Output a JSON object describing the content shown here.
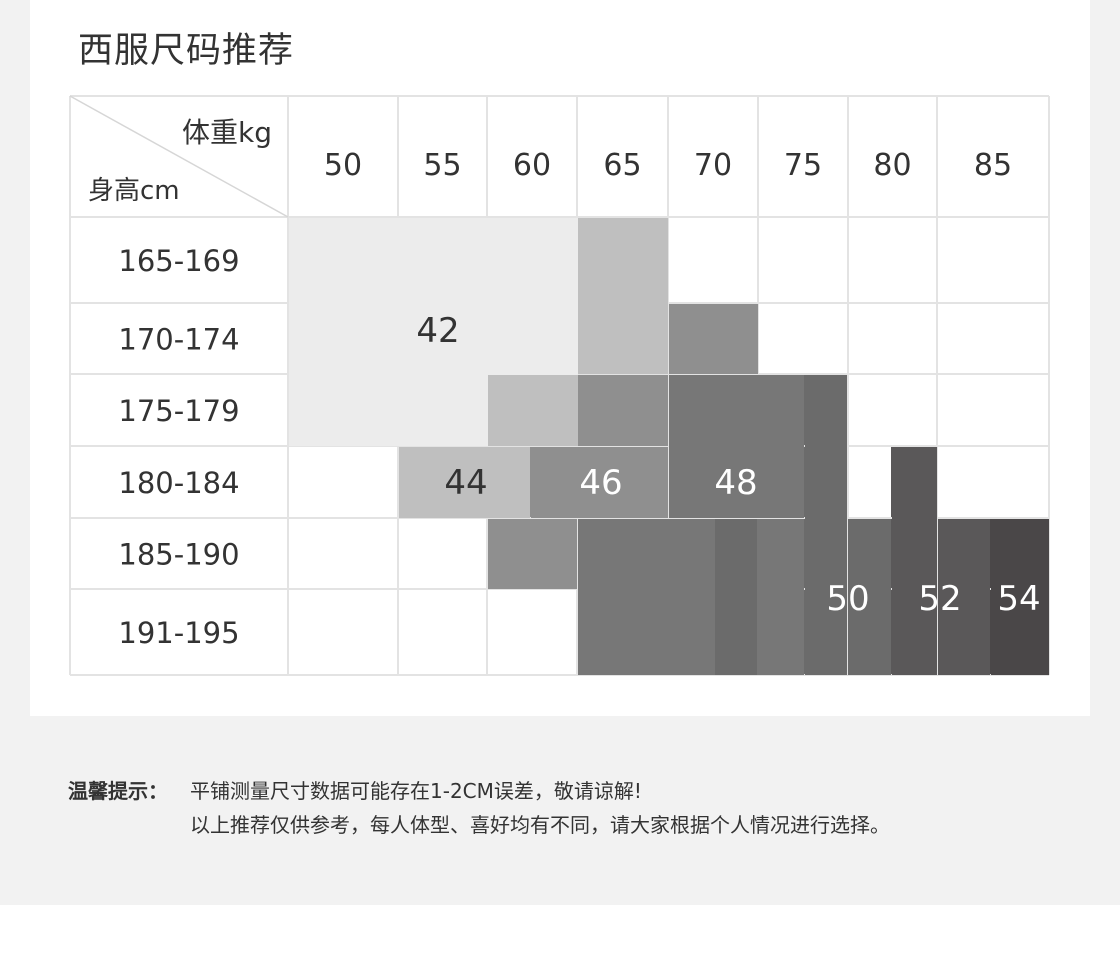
{
  "title": "西服尺码推荐",
  "chart_data": {
    "type": "table",
    "header_top": "体重kg",
    "header_bottom": "身高cm",
    "weights": [
      "50",
      "55",
      "60",
      "65",
      "70",
      "75",
      "80",
      "85"
    ],
    "heights": [
      "165-169",
      "170-174",
      "175-179",
      "180-184",
      "185-190",
      "191-195"
    ],
    "sizes": [
      {
        "label": "42",
        "color": "#ececec",
        "text_color": "#333333"
      },
      {
        "label": "44",
        "color": "#bfbfbf",
        "text_color": "#333333"
      },
      {
        "label": "46",
        "color": "#8f8f8f",
        "text_color": "#ffffff"
      },
      {
        "label": "48",
        "color": "#777777",
        "text_color": "#ffffff"
      },
      {
        "label": "50",
        "color": "#6b6b6b",
        "text_color": "#ffffff"
      },
      {
        "label": "52",
        "color": "#5a5859",
        "text_color": "#ffffff"
      },
      {
        "label": "54",
        "color": "#4a4748",
        "text_color": "#ffffff"
      }
    ],
    "grid_color": "#e3e3e3"
  },
  "notes": {
    "label": "温馨提示：",
    "line1": "平铺测量尺寸数据可能存在1-2CM误差，敬请谅解!",
    "line2": "以上推荐仅供参考，每人体型、喜好均有不同，请大家根据个人情况进行选择。"
  }
}
